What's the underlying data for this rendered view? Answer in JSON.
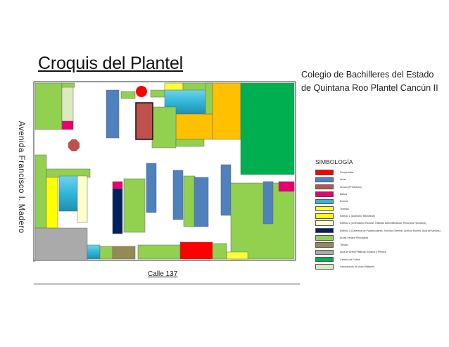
{
  "title": "Croquis del Plantel",
  "school": {
    "line1": "Colegio de Bachilleres del Estado",
    "line2": "de Quintana Roo Plantel Cancún II"
  },
  "street_left": "Avenida Francisco I. Madero",
  "street_bottom": "Calle 137",
  "legend": {
    "title": "SIMBOLOGÍA",
    "items": [
      {
        "color": "#ff0000",
        "label": "Cooperativa"
      },
      {
        "color": "#4f81bd",
        "label": "Aulas"
      },
      {
        "color": "#c0504d",
        "label": "Kiosco (Prefectura)"
      },
      {
        "color": "#e8006c",
        "label": "Baños"
      },
      {
        "color": "#31b6d8",
        "label": "Domos"
      },
      {
        "color": "#ffff33",
        "label": "Tarimas"
      },
      {
        "color": "#ffff00",
        "label": "Edificio 1 (Auditorio, Biblioteca)"
      },
      {
        "color": "#ffffcc",
        "label": "Edificio 2 (Orientación Escolar, Oficinas administrativas, Recursos Humanos)"
      },
      {
        "color": "#002060",
        "label": "Edificio 3 (Cafetería de Paraescolares, Servicio General, Archivo Muerto, Aula de Medios)"
      },
      {
        "color": "#92d050",
        "label": "Áreas Verdes Principales"
      },
      {
        "color": "#948a54",
        "label": "Tienda"
      },
      {
        "color": "#aaaaaa",
        "label": "Aula de Artes Plásticas, Música y Pintura"
      },
      {
        "color": "#00b050",
        "label": "Cancha de Futbol"
      },
      {
        "color": "#ddeac0",
        "label": "Laboratorios de usos Múltiples"
      }
    ]
  },
  "colors": {
    "cooperativa": "#ff0000",
    "aulas": "#4f81bd",
    "kiosco": "#c0504d",
    "banos": "#e8006c",
    "domos": "#31b6d8",
    "tarimas": "#ffff33",
    "edificio1": "#ffff00",
    "edificio2": "#ffffcc",
    "edificio3": "#002060",
    "areas_verdes": "#92d050",
    "tienda": "#948a54",
    "aula_artes": "#aaaaaa",
    "cancha": "#00b050",
    "laboratorios": "#ddeac0",
    "edificio_naranja": "#ffc000"
  }
}
